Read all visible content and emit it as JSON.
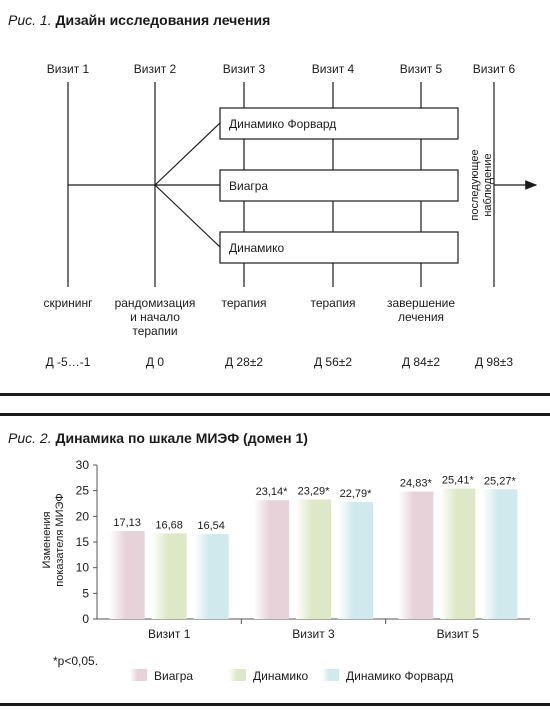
{
  "figure1": {
    "num": "Рис. 1.",
    "title": "Дизайн исследования лечения",
    "visits": [
      "Визит 1",
      "Визит 2",
      "Визит 3",
      "Визит 4",
      "Визит 5",
      "Визит 6"
    ],
    "arms": [
      "Динамико Форвард",
      "Виагра",
      "Динамико"
    ],
    "followup": [
      "последующее",
      "наблюдение"
    ],
    "stages": [
      [
        "скрининг"
      ],
      [
        "рандомизация",
        "и начало",
        "терапии"
      ],
      [
        "терапия"
      ],
      [
        "терапия"
      ],
      [
        "завершение",
        "лечения"
      ]
    ],
    "days": [
      "Д -5…-1",
      "Д 0",
      "Д 28±2",
      "Д 56±2",
      "Д 84±2",
      "Д 98±3"
    ]
  },
  "figure2": {
    "num": "Рис. 2.",
    "title": "Динамика по шкале МИЭФ (домен 1)",
    "footnote": "*p<0,05."
  },
  "colors": {
    "viagra": "#e6d2d8",
    "dinamiko": "#dfe8c6",
    "dinamiko_forward": "#cfe9ec",
    "line": "#1a1a1a",
    "axis": "#555555"
  },
  "chart_data": {
    "type": "bar",
    "title": "Динамика по шкале МИЭФ (домен 1)",
    "ylabel": "Изменения показателя МИЭФ",
    "xlabel": "",
    "categories": [
      "Визит 1",
      "Визит 3",
      "Визит 5"
    ],
    "series": [
      {
        "name": "Виагра",
        "values": [
          17.13,
          23.14,
          24.83
        ],
        "labels": [
          "17,13",
          "23,14*",
          "24,83*"
        ]
      },
      {
        "name": "Динамико",
        "values": [
          16.68,
          23.29,
          25.41
        ],
        "labels": [
          "16,68",
          "23,29*",
          "25,41*"
        ]
      },
      {
        "name": "Динамико Форвард",
        "values": [
          16.54,
          22.79,
          25.27
        ],
        "labels": [
          "16,54",
          "22,79*",
          "25,27*"
        ]
      }
    ],
    "ylim": [
      0,
      30
    ],
    "yticks": [
      0,
      5,
      10,
      15,
      20,
      25,
      30
    ],
    "grid": false,
    "legend": "bottom"
  }
}
